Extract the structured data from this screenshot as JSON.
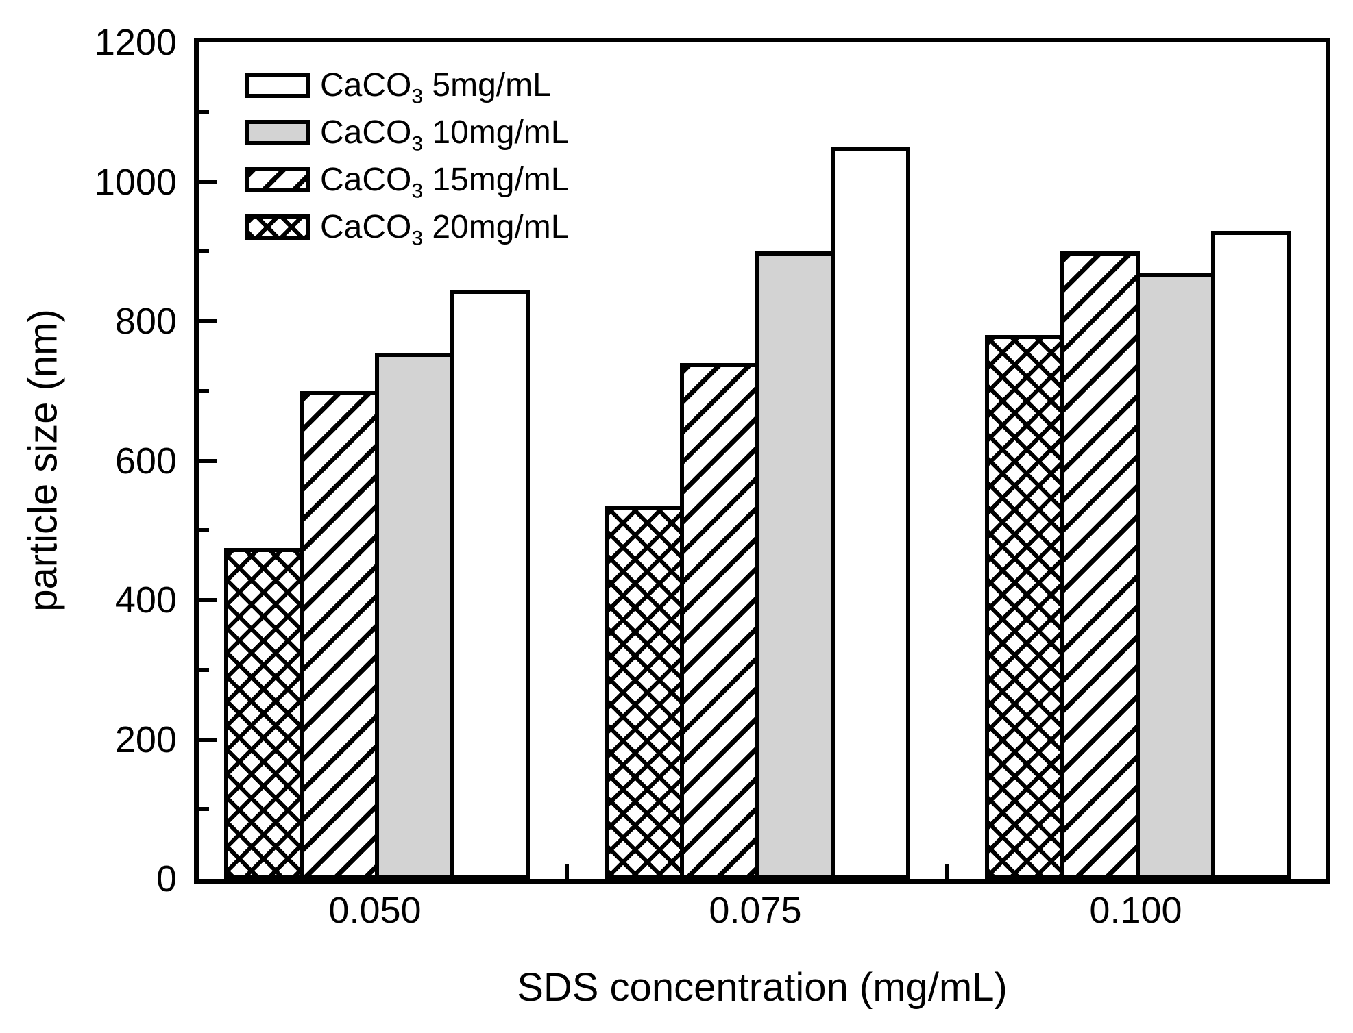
{
  "chart_data": {
    "type": "bar",
    "title": "",
    "xlabel": "SDS concentration (mg/mL)",
    "ylabel": "particle size (nm)",
    "categories": [
      "0.050",
      "0.075",
      "0.100"
    ],
    "series": [
      {
        "label_prefix": "CaCO",
        "label_sub": "3",
        "label_suffix": " 5mg/mL",
        "pattern": "white",
        "values": [
          845,
          1050,
          930
        ]
      },
      {
        "label_prefix": "CaCO",
        "label_sub": "3",
        "label_suffix": " 10mg/mL",
        "pattern": "gray",
        "values": [
          755,
          900,
          870
        ]
      },
      {
        "label_prefix": "CaCO",
        "label_sub": "3",
        "label_suffix": " 15mg/mL",
        "pattern": "diagonal-hatch",
        "values": [
          700,
          740,
          900
        ]
      },
      {
        "label_prefix": "CaCO",
        "label_sub": "3",
        "label_suffix": " 20mg/mL",
        "pattern": "cross-hatch",
        "values": [
          475,
          535,
          780
        ]
      }
    ],
    "group_draw_order": [
      3,
      2,
      1,
      0
    ],
    "ylim": [
      0,
      1200
    ],
    "ytick_values": [
      0,
      200,
      400,
      600,
      800,
      1000,
      1200
    ],
    "ytick_labels": [
      "0",
      "200",
      "400",
      "600",
      "800",
      "1000",
      "1200"
    ],
    "minor_tick_values": [
      100,
      300,
      500,
      700,
      900,
      1100
    ],
    "legend_position": "top-left",
    "grid": false
  },
  "colors": {
    "axis": "#000000",
    "text": "#000000",
    "gray_fill": "#d3d3d3",
    "white_fill": "#ffffff",
    "hatch": "#000000",
    "background": "#ffffff"
  }
}
